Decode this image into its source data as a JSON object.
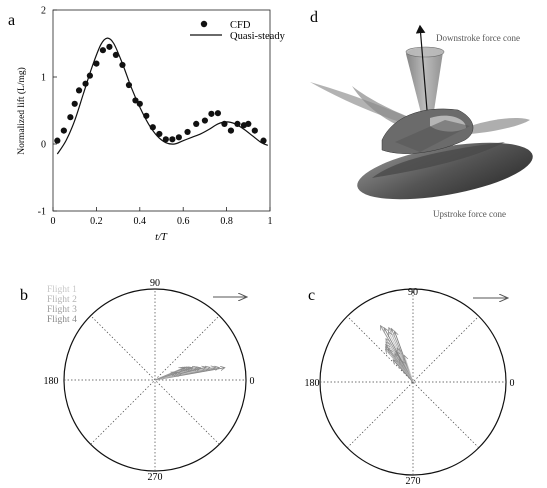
{
  "panels": {
    "a": {
      "label": "a",
      "xlabel": "t/T",
      "ylabel": "Normalized lift (L/mg)",
      "xticks": [
        "0",
        "0.2",
        "0.4",
        "0.6",
        "0.8",
        "1"
      ],
      "yticks": [
        "-1",
        "0",
        "1",
        "2"
      ],
      "legend": {
        "cfd": "CFD",
        "qs": "Quasi-steady"
      }
    },
    "b": {
      "label": "b",
      "angles": {
        "a90": "90",
        "a180": "180",
        "a0": "0",
        "a270": "270"
      },
      "flights": [
        "Flight 1",
        "Flight 2",
        "Flight 3",
        "Flight 4"
      ]
    },
    "c": {
      "label": "c",
      "angles": {
        "a90": "90",
        "a180": "180",
        "a0": "0",
        "a270": "270"
      }
    },
    "d": {
      "label": "d",
      "downstroke": "Downstroke force cone",
      "upstroke": "Upstroke force cone"
    }
  },
  "chart_data": [
    {
      "type": "scatter",
      "xlim": [
        0,
        1
      ],
      "ylim": [
        -1,
        2
      ],
      "series": [
        {
          "name": "CFD",
          "x": [
            0.02,
            0.05,
            0.08,
            0.1,
            0.12,
            0.15,
            0.17,
            0.2,
            0.23,
            0.26,
            0.29,
            0.32,
            0.35,
            0.38,
            0.4,
            0.43,
            0.46,
            0.49,
            0.52,
            0.55,
            0.58,
            0.62,
            0.66,
            0.7,
            0.73,
            0.76,
            0.79,
            0.82,
            0.85,
            0.88,
            0.9,
            0.93,
            0.97
          ],
          "y": [
            0.05,
            0.2,
            0.4,
            0.6,
            0.8,
            0.9,
            1.02,
            1.2,
            1.4,
            1.45,
            1.33,
            1.18,
            0.88,
            0.65,
            0.6,
            0.42,
            0.25,
            0.15,
            0.07,
            0.07,
            0.1,
            0.18,
            0.3,
            0.35,
            0.45,
            0.46,
            0.3,
            0.2,
            0.3,
            0.28,
            0.3,
            0.2,
            0.05
          ]
        },
        {
          "name": "Quasi-steady",
          "x": [
            0.02,
            0.06,
            0.1,
            0.14,
            0.18,
            0.22,
            0.25,
            0.28,
            0.32,
            0.36,
            0.4,
            0.44,
            0.48,
            0.52,
            0.56,
            0.6,
            0.64,
            0.68,
            0.72,
            0.76,
            0.8,
            0.84,
            0.88,
            0.92,
            0.96,
            0.99
          ],
          "y": [
            -0.15,
            0.05,
            0.35,
            0.75,
            1.15,
            1.48,
            1.58,
            1.5,
            1.2,
            0.85,
            0.55,
            0.3,
            0.12,
            0.02,
            0.0,
            0.05,
            0.1,
            0.15,
            0.22,
            0.3,
            0.33,
            0.3,
            0.22,
            0.12,
            0.02,
            -0.02
          ]
        }
      ]
    },
    {
      "type": "scatter",
      "polar": true,
      "vectors_angle_deg": [
        10,
        11,
        12,
        13,
        14,
        15,
        16,
        17,
        18,
        19,
        20,
        21,
        22,
        23,
        14,
        16,
        18,
        20
      ],
      "vectors_length": [
        0.78,
        0.72,
        0.68,
        0.62,
        0.58,
        0.52,
        0.5,
        0.48,
        0.44,
        0.42,
        0.4,
        0.38,
        0.36,
        0.34,
        0.3,
        0.28,
        0.26,
        0.24
      ]
    },
    {
      "type": "scatter",
      "polar": true,
      "vectors_angle_deg": [
        110,
        112,
        114,
        116,
        118,
        120,
        122,
        124,
        126,
        128,
        130,
        115,
        119,
        123,
        127,
        108,
        132,
        117,
        121
      ],
      "vectors_length": [
        0.58,
        0.62,
        0.64,
        0.6,
        0.66,
        0.7,
        0.55,
        0.52,
        0.5,
        0.48,
        0.46,
        0.4,
        0.38,
        0.36,
        0.44,
        0.3,
        0.32,
        0.25,
        0.28
      ]
    }
  ]
}
